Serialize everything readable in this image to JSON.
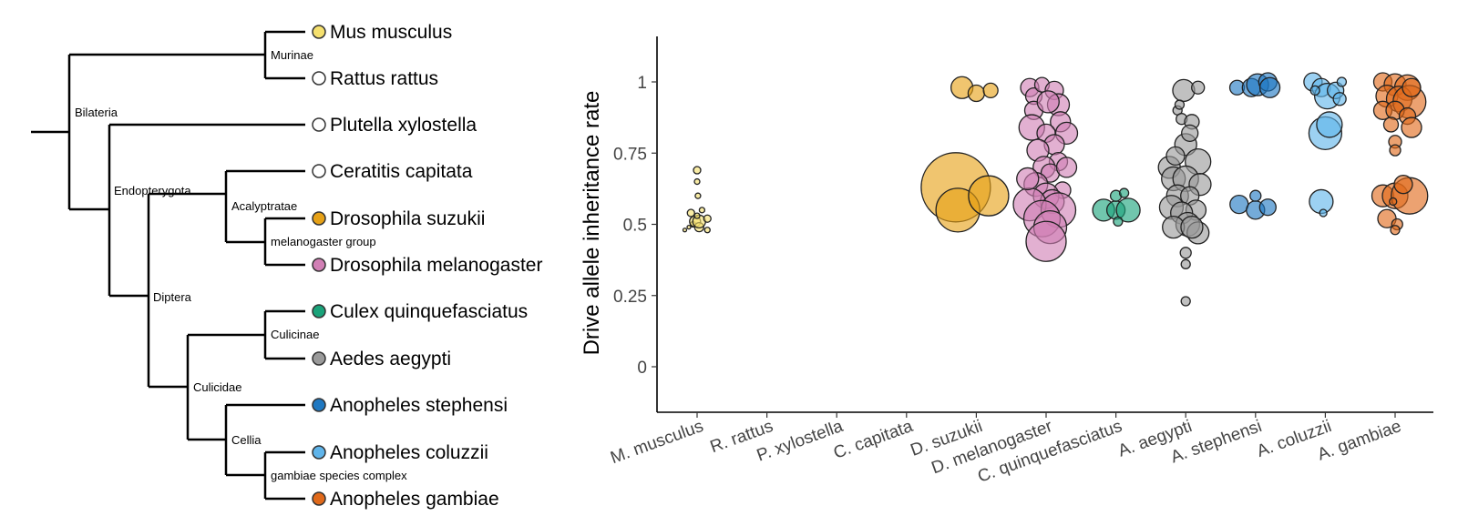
{
  "tree": {
    "clades": [
      {
        "key": "bilateria",
        "label": "Bilateria"
      },
      {
        "key": "murinae",
        "label": "Murinae"
      },
      {
        "key": "endopterygota",
        "label": "Endopterygota"
      },
      {
        "key": "diptera",
        "label": "Diptera"
      },
      {
        "key": "acalyptratae",
        "label": "Acalyptratae"
      },
      {
        "key": "melanogaster_group",
        "label": "melanogaster group"
      },
      {
        "key": "culicidae",
        "label": "Culicidae"
      },
      {
        "key": "culicinae",
        "label": "Culicinae"
      },
      {
        "key": "cellia",
        "label": "Cellia"
      },
      {
        "key": "gambiae_complex",
        "label": "gambiae species complex"
      }
    ],
    "species": [
      {
        "name": "Mus musculus",
        "color": "#f5e06e"
      },
      {
        "name": "Rattus rattus",
        "color": "#ffffff"
      },
      {
        "name": "Plutella xylostella",
        "color": "#ffffff"
      },
      {
        "name": "Ceratitis capitata",
        "color": "#ffffff"
      },
      {
        "name": "Drosophila suzukii",
        "color": "#e6a117"
      },
      {
        "name": "Drosophila melanogaster",
        "color": "#d17fb5"
      },
      {
        "name": "Culex quinquefasciatus",
        "color": "#1aa37a"
      },
      {
        "name": "Aedes aegypti",
        "color": "#9a9a9a"
      },
      {
        "name": "Anopheles stephensi",
        "color": "#1f78c1"
      },
      {
        "name": "Anopheles coluzzii",
        "color": "#5fb4ea"
      },
      {
        "name": "Anopheles gambiae",
        "color": "#e0691a"
      }
    ]
  },
  "chart_data": {
    "type": "scatter",
    "ylabel": "Drive allele inheritance rate",
    "xlabel": "",
    "ylim": [
      -0.15,
      1.15
    ],
    "yticks": [
      0,
      0.25,
      0.5,
      0.75,
      1
    ],
    "ytick_labels": [
      "0",
      "0.25",
      "0.5",
      "0.75",
      "1"
    ],
    "categories": [
      "M. musculus",
      "R. rattus",
      "P. xylostella",
      "C. capitata",
      "D. suzukii",
      "D. melanogaster",
      "C. quinquefasciatus",
      "A. aegypti",
      "A. stephensi",
      "A. coluzzii",
      "A. gambiae"
    ],
    "colors": [
      "#f5e06e",
      "#ffffff",
      "#ffffff",
      "#ffffff",
      "#e6a117",
      "#d17fb5",
      "#1aa37a",
      "#9a9a9a",
      "#1f78c1",
      "#5fb4ea",
      "#e0691a"
    ],
    "grid": false,
    "legend": "none",
    "point_size_note": "point size varies by sample size",
    "series": [
      {
        "category": "M. musculus",
        "points": [
          [
            -0.3,
            0.48,
            2
          ],
          [
            -0.15,
            0.54,
            4
          ],
          [
            -0.1,
            0.5,
            3
          ],
          [
            -0.05,
            0.51,
            6
          ],
          [
            0,
            0.69,
            4
          ],
          [
            0,
            0.65,
            3
          ],
          [
            0.02,
            0.6,
            3
          ],
          [
            0.05,
            0.49,
            5
          ],
          [
            0.05,
            0.51,
            7
          ],
          [
            0.12,
            0.55,
            3
          ],
          [
            0.25,
            0.48,
            3
          ],
          [
            0.25,
            0.52,
            4
          ],
          [
            -0.2,
            0.49,
            2
          ],
          [
            0,
            0.53,
            3
          ]
        ]
      },
      {
        "category": "R. rattus",
        "points": []
      },
      {
        "category": "P. xylostella",
        "points": []
      },
      {
        "category": "C. capitata",
        "points": []
      },
      {
        "category": "D. suzukii",
        "points": [
          [
            -0.35,
            0.98,
            12
          ],
          [
            -0.5,
            0.63,
            38
          ],
          [
            -0.45,
            0.55,
            24
          ],
          [
            0.3,
            0.6,
            22
          ],
          [
            0,
            0.96,
            9
          ],
          [
            0.35,
            0.97,
            8
          ]
        ]
      },
      {
        "category": "D. melanogaster",
        "points": [
          [
            -0.4,
            0.98,
            10
          ],
          [
            -0.3,
            0.95,
            9
          ],
          [
            -0.1,
            0.99,
            8
          ],
          [
            0.2,
            0.97,
            10
          ],
          [
            0.3,
            0.92,
            12
          ],
          [
            -0.3,
            0.9,
            10
          ],
          [
            0.05,
            0.93,
            12
          ],
          [
            0.35,
            0.86,
            11
          ],
          [
            0.5,
            0.82,
            12
          ],
          [
            -0.35,
            0.84,
            14
          ],
          [
            0,
            0.82,
            10
          ],
          [
            0.2,
            0.78,
            11
          ],
          [
            -0.2,
            0.76,
            12
          ],
          [
            0.3,
            0.72,
            10
          ],
          [
            -0.05,
            0.7,
            12
          ],
          [
            0.1,
            0.68,
            10
          ],
          [
            -0.25,
            0.64,
            13
          ],
          [
            0.4,
            0.62,
            9
          ],
          [
            0,
            0.6,
            14
          ],
          [
            0.15,
            0.58,
            13
          ],
          [
            -0.4,
            0.57,
            18
          ],
          [
            0.3,
            0.55,
            19
          ],
          [
            -0.1,
            0.52,
            20
          ],
          [
            0.1,
            0.49,
            18
          ],
          [
            0,
            0.44,
            22
          ],
          [
            -0.45,
            0.66,
            12
          ],
          [
            0.5,
            0.7,
            11
          ]
        ]
      },
      {
        "category": "C. quinquefasciatus",
        "points": [
          [
            -0.3,
            0.55,
            12
          ],
          [
            0,
            0.55,
            10
          ],
          [
            0.3,
            0.55,
            13
          ],
          [
            0,
            0.6,
            6
          ],
          [
            0.2,
            0.61,
            5
          ],
          [
            0.05,
            0.51,
            5
          ]
        ]
      },
      {
        "category": "A. aegypti",
        "points": [
          [
            -0.05,
            0.97,
            12
          ],
          [
            0.3,
            0.98,
            7
          ],
          [
            -0.2,
            0.9,
            5
          ],
          [
            -0.1,
            0.87,
            6
          ],
          [
            0.15,
            0.86,
            8
          ],
          [
            0,
            0.78,
            12
          ],
          [
            0.3,
            0.72,
            14
          ],
          [
            -0.4,
            0.7,
            12
          ],
          [
            -0.3,
            0.66,
            13
          ],
          [
            0,
            0.66,
            14
          ],
          [
            0.35,
            0.64,
            12
          ],
          [
            -0.2,
            0.6,
            12
          ],
          [
            0.1,
            0.6,
            10
          ],
          [
            -0.35,
            0.56,
            13
          ],
          [
            0.25,
            0.55,
            11
          ],
          [
            -0.1,
            0.54,
            12
          ],
          [
            0.05,
            0.5,
            13
          ],
          [
            -0.3,
            0.49,
            12
          ],
          [
            0.3,
            0.47,
            12
          ],
          [
            0.15,
            0.49,
            12
          ],
          [
            0,
            0.4,
            6
          ],
          [
            0,
            0.36,
            5
          ],
          [
            0,
            0.23,
            5
          ],
          [
            -0.15,
            0.92,
            5
          ],
          [
            0.1,
            0.82,
            9
          ],
          [
            -0.25,
            0.74,
            10
          ]
        ]
      },
      {
        "category": "A. stephensi",
        "points": [
          [
            -0.45,
            0.98,
            8
          ],
          [
            -0.1,
            0.98,
            10
          ],
          [
            0.05,
            0.99,
            12
          ],
          [
            0.3,
            1.0,
            10
          ],
          [
            0.35,
            0.98,
            11
          ],
          [
            -0.4,
            0.57,
            10
          ],
          [
            0,
            0.6,
            6
          ],
          [
            0,
            0.55,
            10
          ],
          [
            0.3,
            0.56,
            9
          ]
        ]
      },
      {
        "category": "A. coluzzii",
        "points": [
          [
            -0.3,
            1.0,
            10
          ],
          [
            -0.1,
            0.98,
            10
          ],
          [
            0.05,
            0.95,
            14
          ],
          [
            0.25,
            0.97,
            9
          ],
          [
            0.35,
            0.94,
            7
          ],
          [
            0.4,
            1.0,
            5
          ],
          [
            -0.25,
            0.97,
            5
          ],
          [
            0,
            0.82,
            18
          ],
          [
            0.1,
            0.85,
            14
          ],
          [
            -0.1,
            0.58,
            13
          ],
          [
            -0.05,
            0.54,
            4
          ]
        ]
      },
      {
        "category": "A. gambiae",
        "points": [
          [
            -0.3,
            1.0,
            10
          ],
          [
            0,
            0.99,
            12
          ],
          [
            0.3,
            0.98,
            14
          ],
          [
            -0.2,
            0.95,
            12
          ],
          [
            0.1,
            0.94,
            14
          ],
          [
            0.35,
            0.93,
            18
          ],
          [
            -0.3,
            0.9,
            10
          ],
          [
            0,
            0.9,
            10
          ],
          [
            0.3,
            0.88,
            9
          ],
          [
            -0.1,
            0.85,
            8
          ],
          [
            0.4,
            0.84,
            11
          ],
          [
            0,
            0.79,
            7
          ],
          [
            0,
            0.76,
            6
          ],
          [
            -0.3,
            0.6,
            12
          ],
          [
            0,
            0.6,
            14
          ],
          [
            0.35,
            0.6,
            20
          ],
          [
            0.2,
            0.64,
            10
          ],
          [
            -0.2,
            0.52,
            10
          ],
          [
            0.05,
            0.5,
            6
          ],
          [
            0,
            0.48,
            5
          ],
          [
            -0.05,
            0.58,
            4
          ],
          [
            0.4,
            0.98,
            10
          ]
        ]
      }
    ]
  }
}
